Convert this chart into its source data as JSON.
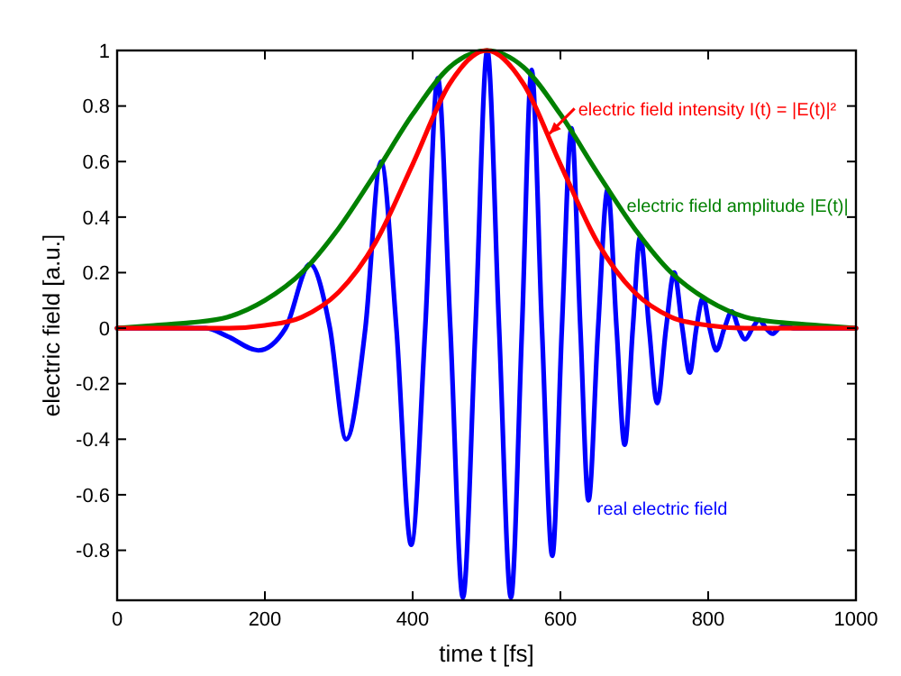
{
  "chart_data": {
    "type": "line",
    "xlabel": "time t [fs]",
    "ylabel": "electric field [a.u.]",
    "xlim": [
      0,
      1000
    ],
    "ylim": [
      -0.98,
      1
    ],
    "xticks": [
      0,
      200,
      400,
      600,
      800,
      1000
    ],
    "yticks": [
      -0.8,
      -0.6,
      -0.4,
      -0.2,
      0,
      0.2,
      0.4,
      0.6,
      0.8,
      1
    ],
    "grid": false,
    "marker": "none",
    "line_style": "solid",
    "series": [
      {
        "color": "#0000ff",
        "x": [
          0,
          120,
          150,
          191,
          228,
          261,
          288,
          310,
          336,
          357,
          378,
          398,
          417,
          434,
          451,
          468,
          485,
          501,
          517,
          533,
          548,
          561,
          575,
          589,
          602,
          615,
          627,
          638,
          651,
          664,
          676,
          687,
          698,
          708,
          720,
          731,
          743,
          754,
          765,
          775,
          784,
          793,
          802,
          811,
          822,
          832,
          841,
          850,
          860,
          869,
          878,
          887,
          896,
          905,
          915,
          1000
        ],
        "values": [
          0,
          0,
          -0.03,
          -0.08,
          0,
          0.23,
          0,
          -0.4,
          0,
          0.6,
          0,
          -0.78,
          0,
          0.9,
          0,
          -0.97,
          0,
          1,
          0,
          -0.97,
          0,
          0.93,
          0,
          -0.82,
          0,
          0.72,
          0,
          -0.62,
          0,
          0.5,
          0,
          -0.42,
          0,
          0.33,
          0,
          -0.27,
          0,
          0.2,
          0,
          -0.16,
          0,
          0.11,
          0,
          -0.08,
          0,
          0.06,
          0,
          -0.04,
          0,
          0.03,
          0,
          -0.02,
          0,
          0.01,
          0,
          0
        ]
      },
      {
        "color": "#008000",
        "x": [
          0,
          50,
          100,
          150,
          200,
          250,
          300,
          350,
          400,
          450,
          500,
          550,
          600,
          650,
          700,
          750,
          800,
          850,
          900,
          950,
          1000
        ],
        "values": [
          0,
          0.01,
          0.02,
          0.04,
          0.1,
          0.2,
          0.36,
          0.56,
          0.77,
          0.94,
          1,
          0.94,
          0.77,
          0.56,
          0.36,
          0.2,
          0.1,
          0.04,
          0.02,
          0.01,
          0
        ]
      },
      {
        "color": "#ff0000",
        "x": [
          0,
          50,
          100,
          150,
          200,
          250,
          300,
          350,
          400,
          450,
          500,
          550,
          600,
          650,
          700,
          750,
          800,
          850,
          900,
          950,
          1000
        ],
        "values": [
          0,
          0,
          0,
          0,
          0.01,
          0.04,
          0.13,
          0.31,
          0.59,
          0.88,
          1,
          0.88,
          0.59,
          0.31,
          0.13,
          0.04,
          0.01,
          0,
          0,
          0,
          0
        ]
      }
    ],
    "annotations": [
      {
        "text": "real electric field",
        "x": 640,
        "y": -0.62
      },
      {
        "text": "electric field amplitude |E(t)|",
        "x": 680,
        "y": 0.42
      },
      {
        "text": "electric field intensity I(t) = |E(t)|²",
        "x": 585,
        "y": 0.7
      }
    ]
  }
}
